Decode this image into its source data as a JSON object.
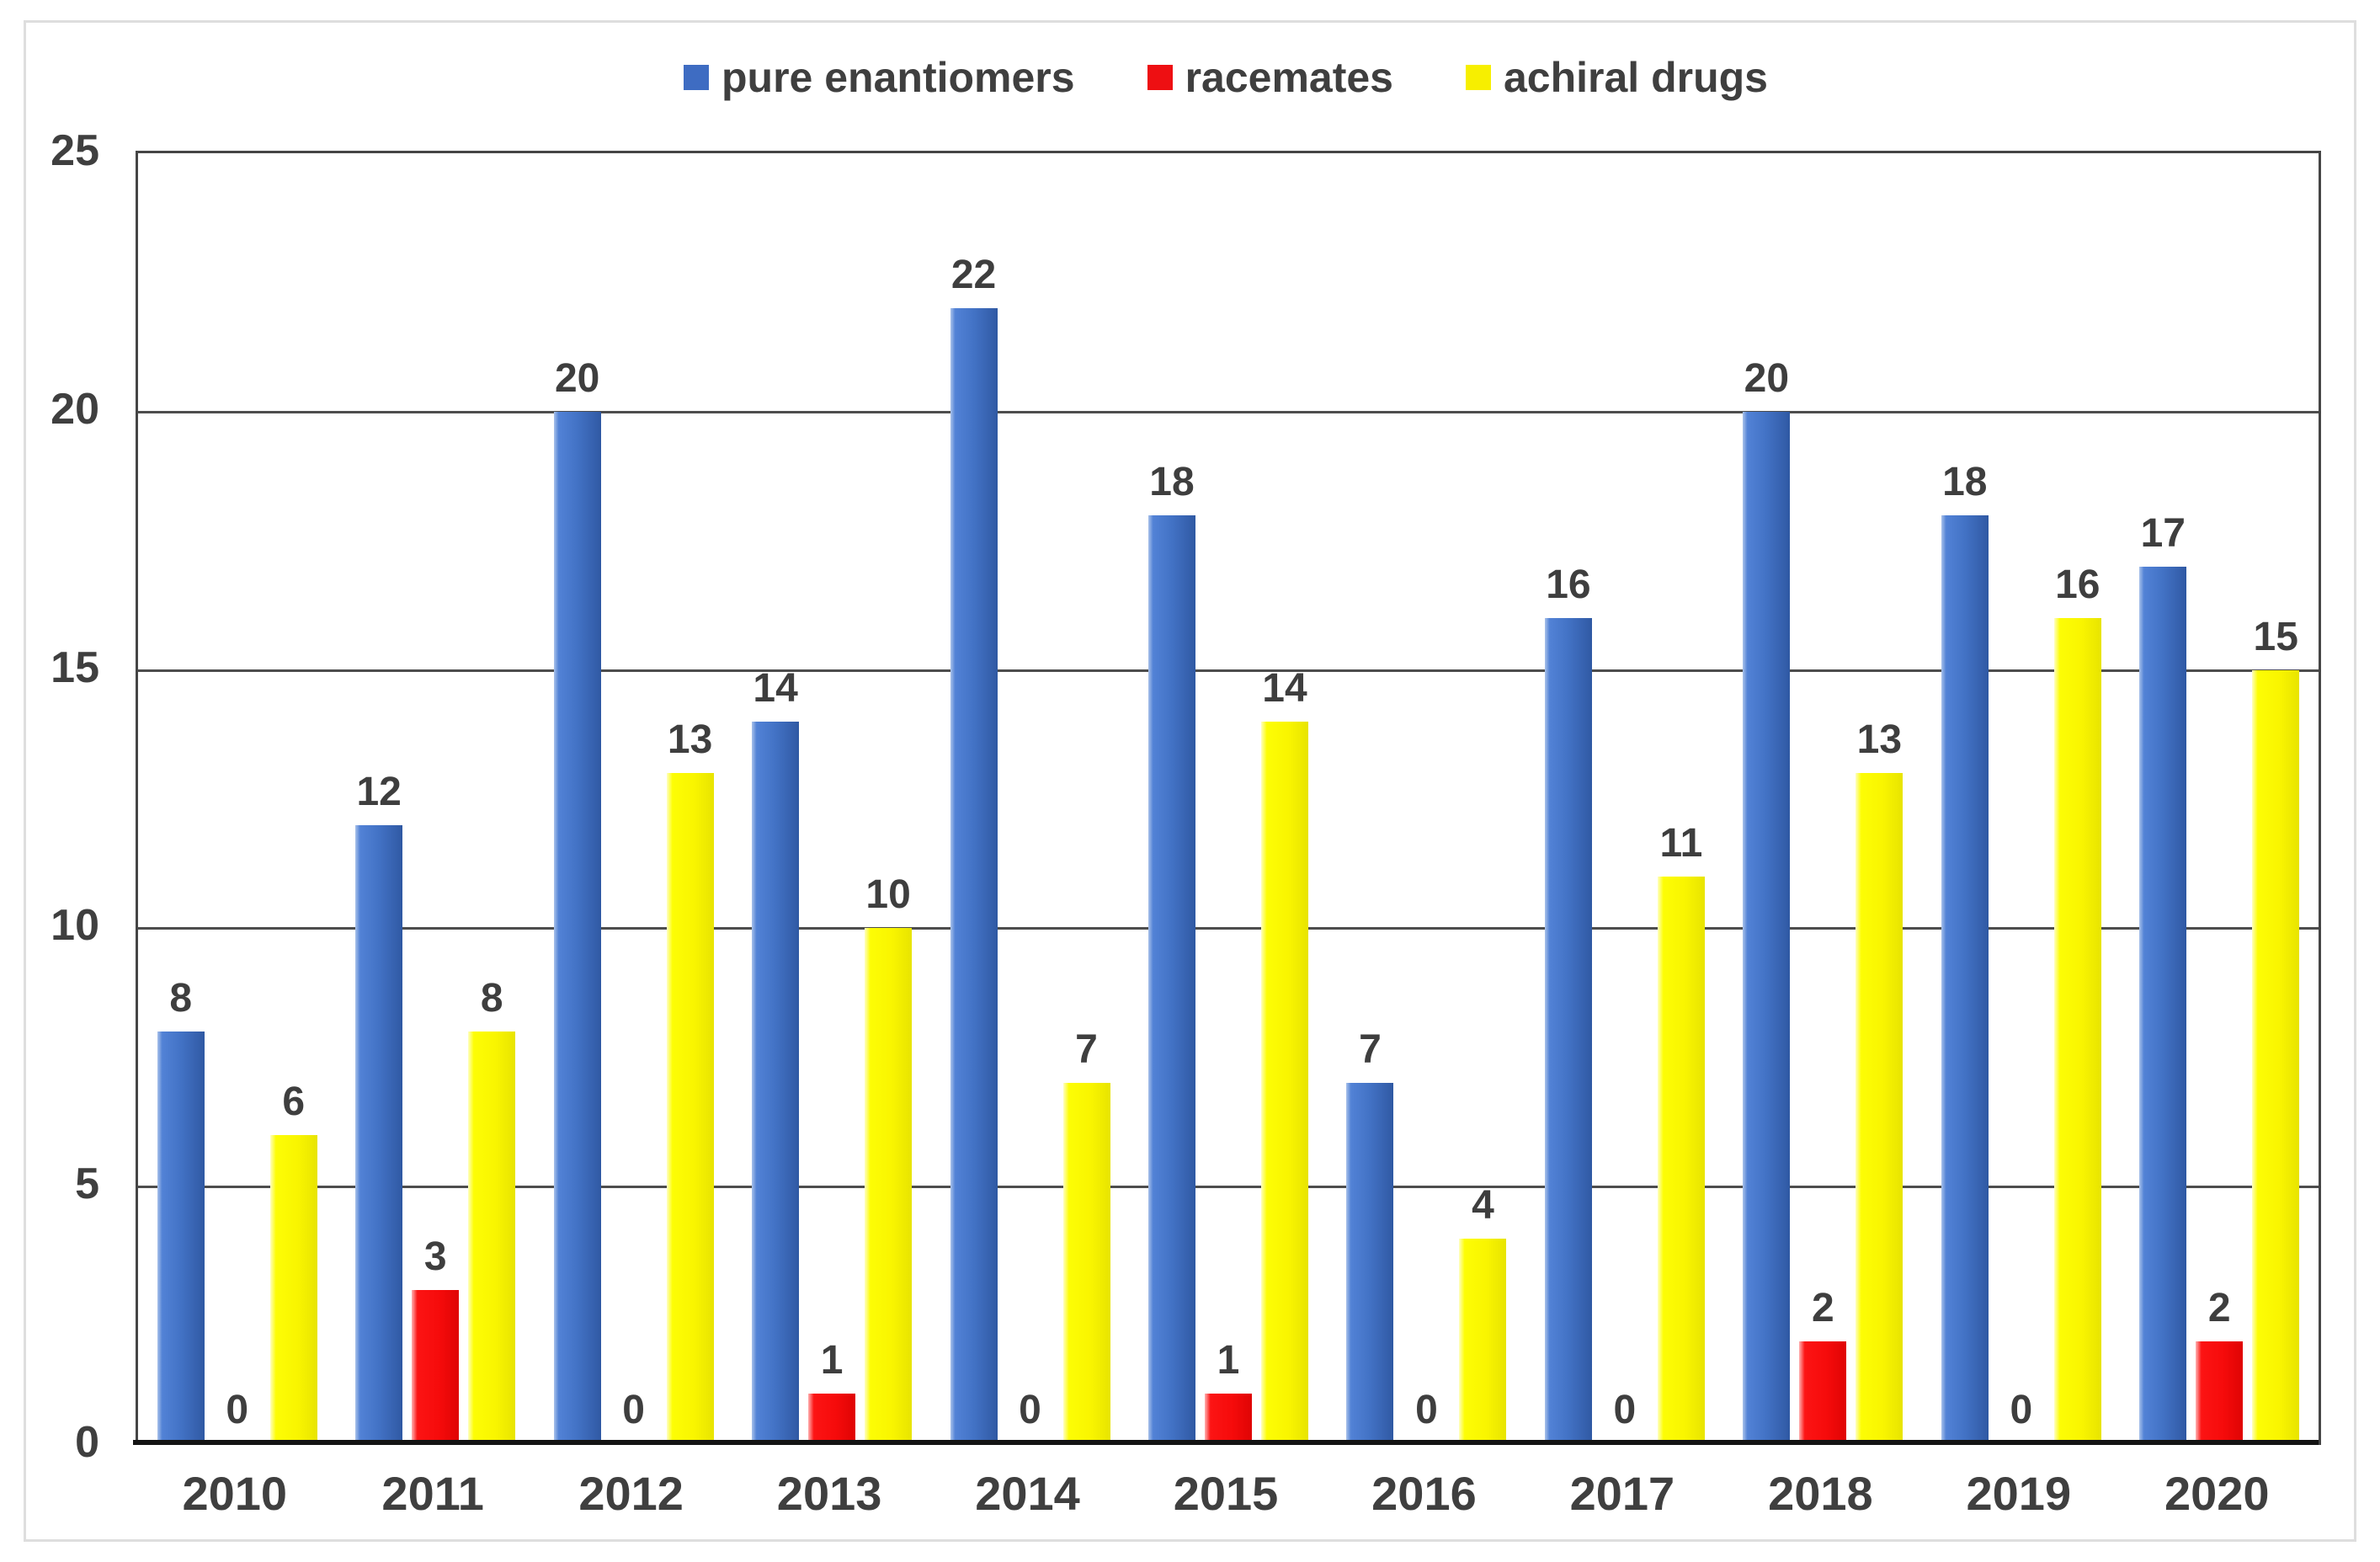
{
  "figure": {
    "kind": "grouped bar chart",
    "title": ""
  },
  "colors": {
    "series_blue": "#3E6CC2",
    "series_red": "#EE0F12",
    "series_yellow": "#F7EF00",
    "text": "#3F3F3F",
    "gridline": "#4D4D4D",
    "plot_border": "#454545",
    "x_axis_line": "#141414",
    "outer_frame": "#DEDEDE",
    "background": "#FFFFFF"
  },
  "chart_data": {
    "type": "bar",
    "title": "",
    "xlabel": "",
    "ylabel": "",
    "categories": [
      "2010",
      "2011",
      "2012",
      "2013",
      "2014",
      "2015",
      "2016",
      "2017",
      "2018",
      "2019",
      "2020"
    ],
    "series": [
      {
        "name": "pure enantiomers",
        "color": "#3E6CC2",
        "values": [
          8,
          12,
          20,
          14,
          22,
          18,
          7,
          16,
          20,
          18,
          17
        ]
      },
      {
        "name": "racemates",
        "color": "#EE0F12",
        "values": [
          0,
          3,
          0,
          1,
          0,
          1,
          0,
          0,
          2,
          0,
          2
        ]
      },
      {
        "name": "achiral drugs",
        "color": "#F7EF00",
        "values": [
          6,
          8,
          13,
          10,
          7,
          14,
          4,
          11,
          13,
          16,
          15
        ]
      }
    ],
    "ylim": [
      0,
      25
    ],
    "y_ticks": [
      25,
      20,
      15,
      10,
      5,
      0
    ],
    "grid": true,
    "data_labels": true,
    "legend_position": "top center"
  }
}
